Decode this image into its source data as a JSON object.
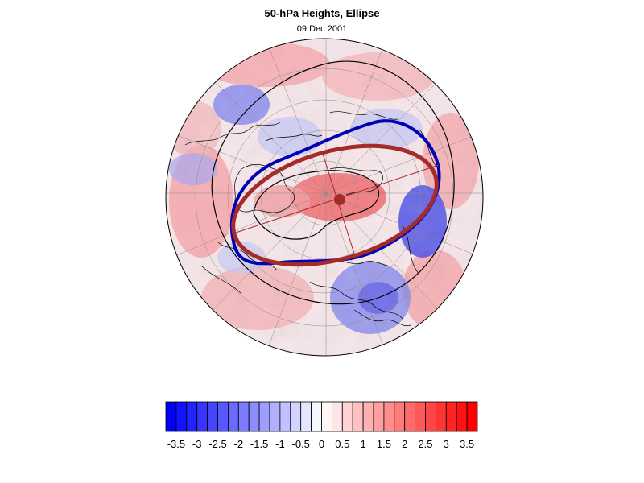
{
  "figure": {
    "title": "50-hPa Heights, Ellipse",
    "subtitle": "09 Dec 2001"
  },
  "map": {
    "projection": "north-polar-stereographic",
    "field": "50-hPa height anomaly",
    "ellipse_color": "#a52a2a",
    "contour_color": "#0000b4",
    "reference_contour_color": "#000000"
  },
  "colorbar": {
    "tick_labels": [
      "-3.5",
      "-3",
      "-2.5",
      "-2",
      "-1.5",
      "-1",
      "-0.5",
      "0",
      "0.5",
      "1",
      "1.5",
      "2",
      "2.5",
      "3",
      "3.5"
    ],
    "min": -3.75,
    "max": 3.75,
    "step": 0.25,
    "neg_color": "#0000ff",
    "pos_color": "#ff0000",
    "mid_color": "#ffffff"
  }
}
